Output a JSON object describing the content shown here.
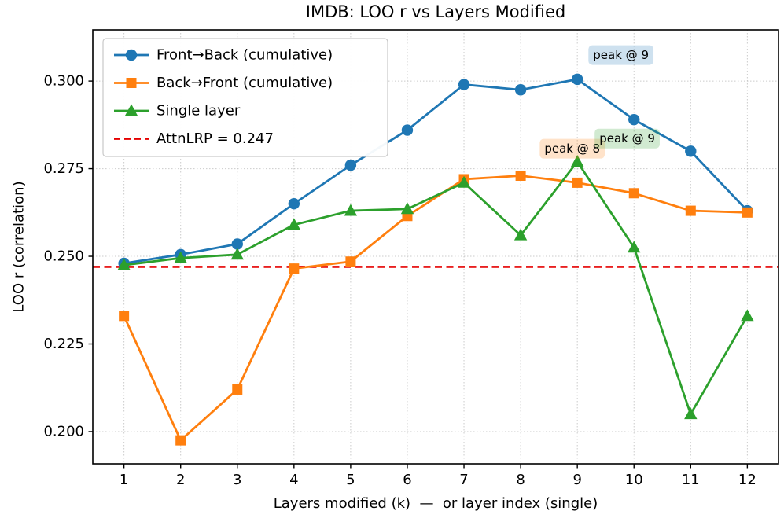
{
  "chart_data": {
    "type": "line",
    "title": "IMDB: LOO r vs Layers Modified",
    "xlabel": "Layers modified (k)  —  or layer index (single)",
    "ylabel": "LOO r (correlation)",
    "x": [
      1,
      2,
      3,
      4,
      5,
      6,
      7,
      8,
      9,
      10,
      11,
      12
    ],
    "xlim": [
      0.45,
      12.55
    ],
    "ylim": [
      0.1908,
      0.3146
    ],
    "xticks": [
      1,
      2,
      3,
      4,
      5,
      6,
      7,
      8,
      9,
      10,
      11,
      12
    ],
    "yticks": [
      0.2,
      0.225,
      0.25,
      0.275,
      0.3
    ],
    "ytick_decimals": 3,
    "grid": true,
    "legend_position": "upper-left",
    "series": [
      {
        "name": "Front→Back (cumulative)",
        "color": "#1f77b4",
        "marker": "circle",
        "values": [
          0.248,
          0.2505,
          0.2535,
          0.265,
          0.276,
          0.286,
          0.299,
          0.2975,
          0.3005,
          0.289,
          0.28,
          0.263
        ]
      },
      {
        "name": "Back→Front (cumulative)",
        "color": "#ff7f0e",
        "marker": "square",
        "values": [
          0.233,
          0.1975,
          0.212,
          0.2465,
          0.2485,
          0.2615,
          0.272,
          0.273,
          0.271,
          0.268,
          0.263,
          0.2625
        ]
      },
      {
        "name": "Single layer",
        "color": "#2ca02c",
        "marker": "triangle",
        "values": [
          0.2475,
          0.2495,
          0.2505,
          0.259,
          0.263,
          0.2635,
          0.271,
          0.256,
          0.277,
          0.2525,
          0.205,
          0.233
        ]
      }
    ],
    "reference_line": {
      "label": "AttnLRP = 0.247",
      "value": 0.247,
      "color": "#e50000",
      "style": "dashed"
    },
    "annotations": [
      {
        "text": "peak @ 9",
        "x": 9.77,
        "y": 0.3074,
        "color": "#1f77b4"
      },
      {
        "text": "peak @ 8",
        "x": 8.91,
        "y": 0.2807,
        "color": "#ff7f0e"
      },
      {
        "text": "peak @ 9",
        "x": 9.88,
        "y": 0.2836,
        "color": "#2ca02c"
      }
    ]
  }
}
